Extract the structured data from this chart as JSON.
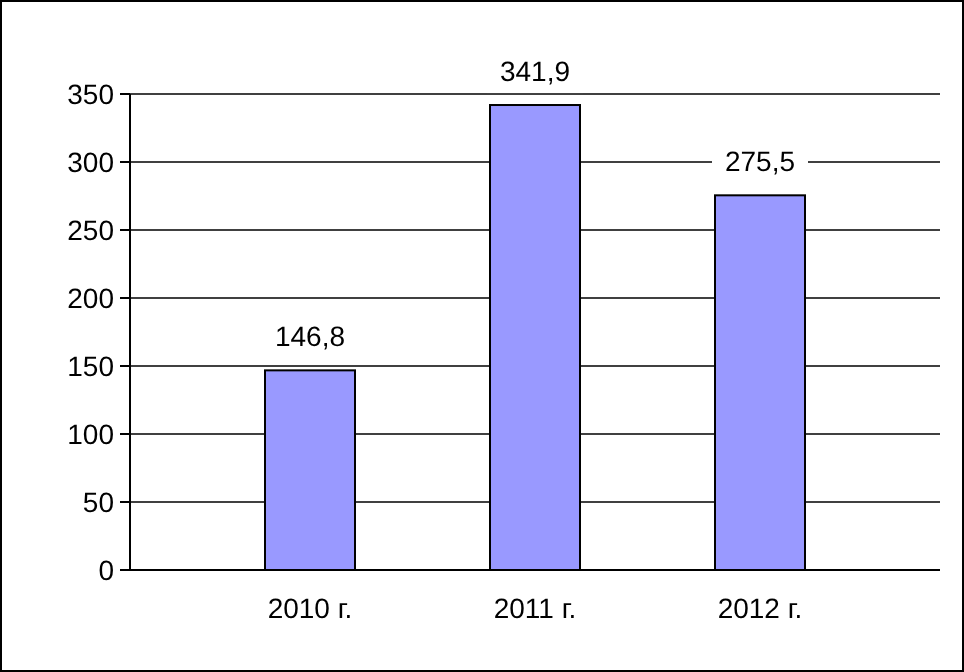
{
  "chart_data": {
    "type": "bar",
    "categories": [
      "2010 г.",
      "2011 г.",
      "2012 г."
    ],
    "values": [
      146.8,
      341.9,
      275.5
    ],
    "value_labels": [
      "146,8",
      "341,9",
      "275,5"
    ],
    "color": "#9999ff",
    "ylim": [
      0,
      350
    ],
    "yticks": [
      0,
      50,
      100,
      150,
      200,
      250,
      300,
      350
    ],
    "grid": "y"
  }
}
